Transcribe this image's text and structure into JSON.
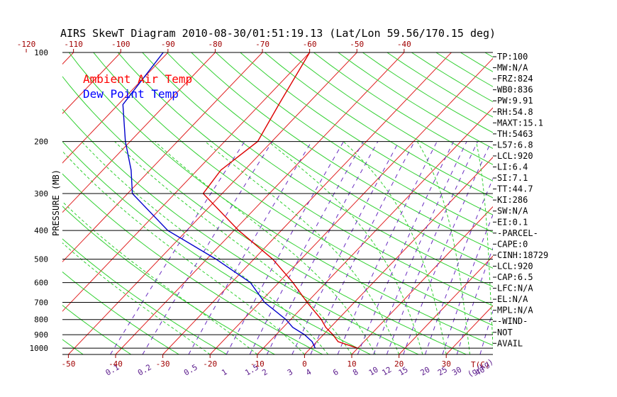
{
  "chart_data": {
    "type": "line",
    "title": "AIRS SkewT Diagram 2010-08-30/01:51:19.13 (Lat/Lon 59.56/170.15 deg)",
    "ylabel": "PRESSURE (MB)",
    "ylim": [
      1050,
      100
    ],
    "pressure_levels": [
      100,
      200,
      300,
      400,
      500,
      600,
      700,
      800,
      900,
      1000
    ],
    "top_temp_ticks": [
      "-120",
      "-110",
      "-100",
      "-90",
      "-80",
      "-70",
      "-60",
      "-50",
      "-40"
    ],
    "bottom_temp_ticks": [
      "-50",
      "-40",
      "-30",
      "-20",
      "-10",
      "0",
      "10",
      "20",
      "30"
    ],
    "temp_unit_label": "T(C)",
    "mixing_ratio_labels": [
      "0.1",
      "0.2",
      "0.5",
      "1",
      "1.5",
      "2",
      "3",
      "4",
      "6",
      "8",
      "10",
      "12",
      "15",
      "20",
      "25",
      "30",
      "40"
    ],
    "mixing_ratio_unit_label": "(g/kg)",
    "legend": [
      {
        "label": "Ambient Air Temp",
        "color": "#ff0000"
      },
      {
        "label": "Dew Point Temp",
        "color": "#0000ff"
      }
    ],
    "series": [
      {
        "name": "Ambient Air Temp",
        "color": "#dd0000",
        "points": [
          {
            "p": 1000,
            "t": 10
          },
          {
            "p": 950,
            "t": 4.5
          },
          {
            "p": 900,
            "t": 2
          },
          {
            "p": 850,
            "t": -1
          },
          {
            "p": 800,
            "t": -3.5
          },
          {
            "p": 700,
            "t": -10
          },
          {
            "p": 600,
            "t": -17
          },
          {
            "p": 500,
            "t": -26
          },
          {
            "p": 400,
            "t": -39
          },
          {
            "p": 300,
            "t": -54
          },
          {
            "p": 250,
            "t": -55
          },
          {
            "p": 200,
            "t": -53
          },
          {
            "p": 150,
            "t": -56
          },
          {
            "p": 100,
            "t": -60
          }
        ]
      },
      {
        "name": "Dew Point Temp",
        "color": "#0000cc",
        "points": [
          {
            "p": 1000,
            "t": 1
          },
          {
            "p": 950,
            "t": -1
          },
          {
            "p": 900,
            "t": -4
          },
          {
            "p": 850,
            "t": -8
          },
          {
            "p": 800,
            "t": -11
          },
          {
            "p": 700,
            "t": -19
          },
          {
            "p": 600,
            "t": -26
          },
          {
            "p": 500,
            "t": -38
          },
          {
            "p": 400,
            "t": -54
          },
          {
            "p": 300,
            "t": -69
          },
          {
            "p": 250,
            "t": -74
          },
          {
            "p": 200,
            "t": -81
          },
          {
            "p": 150,
            "t": -89
          },
          {
            "p": 100,
            "t": -91
          }
        ]
      }
    ]
  },
  "indices": [
    "TP:100",
    "MW:N/A",
    "FRZ:824",
    "WB0:836",
    "PW:9.91",
    "RH:54.8",
    "MAXT:15.1",
    "TH:5463",
    "L57:6.8",
    "LCL:920",
    "LI:6.4",
    "SI:7.1",
    "TT:44.7",
    "KI:286",
    "SW:N/A",
    "EI:0.1",
    "-PARCEL-",
    "CAPE:0",
    "CINH:18729",
    "LCL:920",
    "CAP:6.5",
    "LFC:N/A",
    "EL:N/A",
    "MPL:N/A",
    "-WIND-",
    "NOT",
    "AVAIL"
  ]
}
